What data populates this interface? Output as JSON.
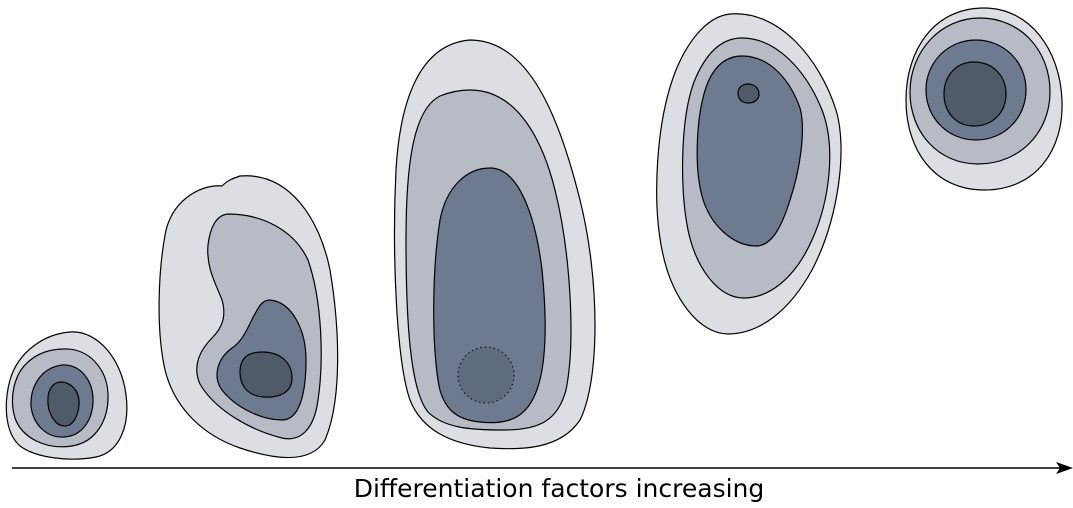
{
  "caption": "Differentiation factors increasing",
  "palette": {
    "level1": "#dcdee3",
    "level2": "#b6bbc5",
    "level3": "#6e7a90",
    "level4": "#515a69",
    "spot": "#5f6b7e",
    "line": "#000000"
  }
}
